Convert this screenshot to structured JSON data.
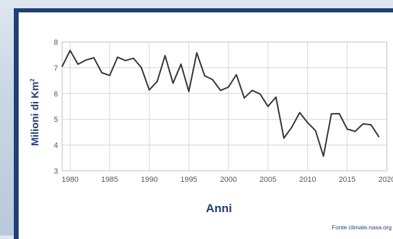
{
  "chart_data": {
    "type": "line",
    "ylabel": "Milioni di Km",
    "ylabel_sup": "2",
    "xlabel": "Anni",
    "source": "Fonte climate.nasa.org",
    "xlim": [
      1979,
      2020
    ],
    "ylim": [
      3,
      8
    ],
    "x_ticks": [
      1980,
      1985,
      1990,
      1995,
      2000,
      2005,
      2010,
      2015,
      2020
    ],
    "y_ticks": [
      3,
      4,
      5,
      6,
      7,
      8
    ],
    "grid": true,
    "line_color": "#333333",
    "series": [
      {
        "x": [
          1979,
          1980,
          1981,
          1982,
          1983,
          1984,
          1985,
          1986,
          1987,
          1988,
          1989,
          1990,
          1991,
          1992,
          1993,
          1994,
          1995,
          1996,
          1997,
          1998,
          1999,
          2000,
          2001,
          2002,
          2003,
          2004,
          2005,
          2006,
          2007,
          2008,
          2009,
          2010,
          2011,
          2012,
          2013,
          2014,
          2015,
          2016,
          2017,
          2018,
          2019
        ],
        "values": [
          7.05,
          7.67,
          7.14,
          7.3,
          7.39,
          6.81,
          6.7,
          7.41,
          7.28,
          7.37,
          7.01,
          6.14,
          6.47,
          7.47,
          6.4,
          7.14,
          6.08,
          7.58,
          6.69,
          6.54,
          6.12,
          6.25,
          6.73,
          5.83,
          6.12,
          5.98,
          5.5,
          5.86,
          4.27,
          4.69,
          5.26,
          4.87,
          4.56,
          3.57,
          5.21,
          5.22,
          4.62,
          4.53,
          4.82,
          4.79,
          4.32
        ]
      }
    ]
  }
}
